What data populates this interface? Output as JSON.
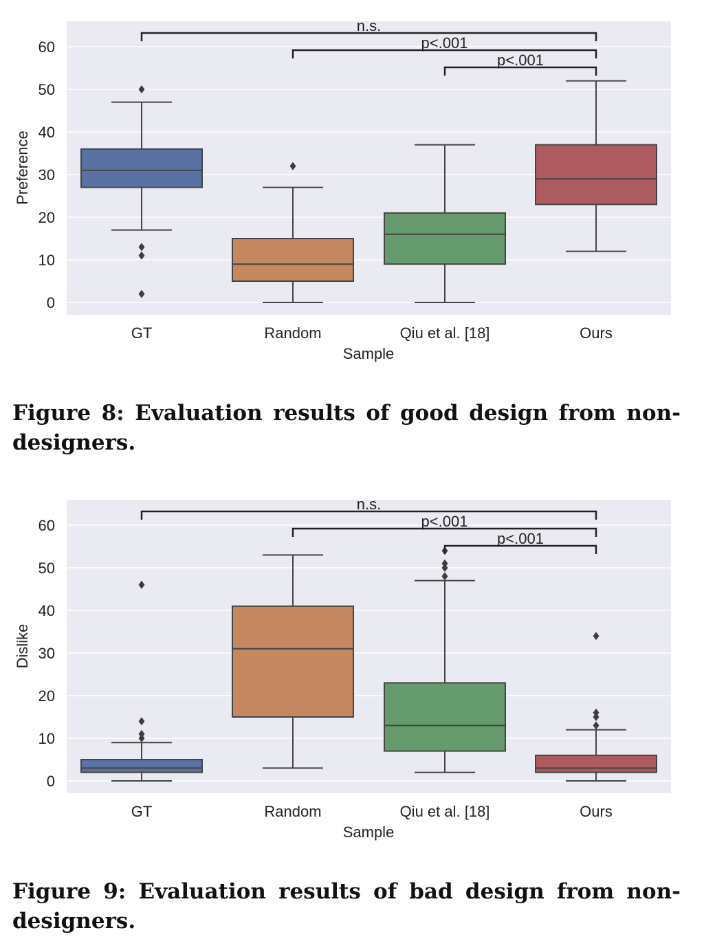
{
  "chart_data": [
    {
      "type": "box",
      "xlabel": "Sample",
      "ylabel": "Preference",
      "ylim": [
        -3,
        67
      ],
      "yticks": [
        0,
        10,
        20,
        30,
        40,
        50,
        60
      ],
      "grid": true,
      "categories": [
        "GT",
        "Random",
        "Qiu et al. [18]",
        "Ours"
      ],
      "colors": [
        "#5a72a3",
        "#c4875f",
        "#659b6c",
        "#ad5b5f"
      ],
      "boxes": [
        {
          "min": 17,
          "q1": 27,
          "median": 31,
          "q3": 36,
          "max": 47,
          "outliers": [
            50,
            13,
            11,
            2
          ]
        },
        {
          "min": 0,
          "q1": 5,
          "median": 9,
          "q3": 15,
          "max": 27,
          "outliers": [
            32
          ]
        },
        {
          "min": 0,
          "q1": 9,
          "median": 16,
          "q3": 21,
          "max": 37,
          "outliers": []
        },
        {
          "min": 12,
          "q1": 23,
          "median": 29,
          "q3": 37,
          "max": 52,
          "outliers": []
        }
      ],
      "significance": [
        {
          "from": "GT",
          "to": "Ours",
          "label": "n.s."
        },
        {
          "from": "Random",
          "to": "Ours",
          "label": "p<.001"
        },
        {
          "from": "Qiu et al. [18]",
          "to": "Ours",
          "label": "p<.001"
        }
      ]
    },
    {
      "type": "box",
      "xlabel": "Sample",
      "ylabel": "Dislike",
      "ylim": [
        -3,
        67
      ],
      "yticks": [
        0,
        10,
        20,
        30,
        40,
        50,
        60
      ],
      "grid": true,
      "categories": [
        "GT",
        "Random",
        "Qiu et al. [18]",
        "Ours"
      ],
      "colors": [
        "#5a72a3",
        "#c4875f",
        "#659b6c",
        "#ad5b5f"
      ],
      "boxes": [
        {
          "min": 0,
          "q1": 2,
          "median": 3,
          "q3": 5,
          "max": 9,
          "outliers": [
            46,
            14,
            11,
            10
          ]
        },
        {
          "min": 3,
          "q1": 15,
          "median": 31,
          "q3": 41,
          "max": 53,
          "outliers": []
        },
        {
          "min": 2,
          "q1": 7,
          "median": 13,
          "q3": 23,
          "max": 47,
          "outliers": [
            54,
            51,
            50,
            48
          ]
        },
        {
          "min": 0,
          "q1": 2,
          "median": 3,
          "q3": 6,
          "max": 12,
          "outliers": [
            34,
            16,
            15,
            13
          ]
        }
      ],
      "significance": [
        {
          "from": "GT",
          "to": "Ours",
          "label": "n.s."
        },
        {
          "from": "Random",
          "to": "Ours",
          "label": "p<.001"
        },
        {
          "from": "Qiu et al. [18]",
          "to": "Ours",
          "label": "p<.001"
        }
      ]
    }
  ],
  "captions": [
    "Figure 8: Evaluation results of good design from non-designers.",
    "Figure 9: Evaluation results of bad design from non-designers."
  ]
}
